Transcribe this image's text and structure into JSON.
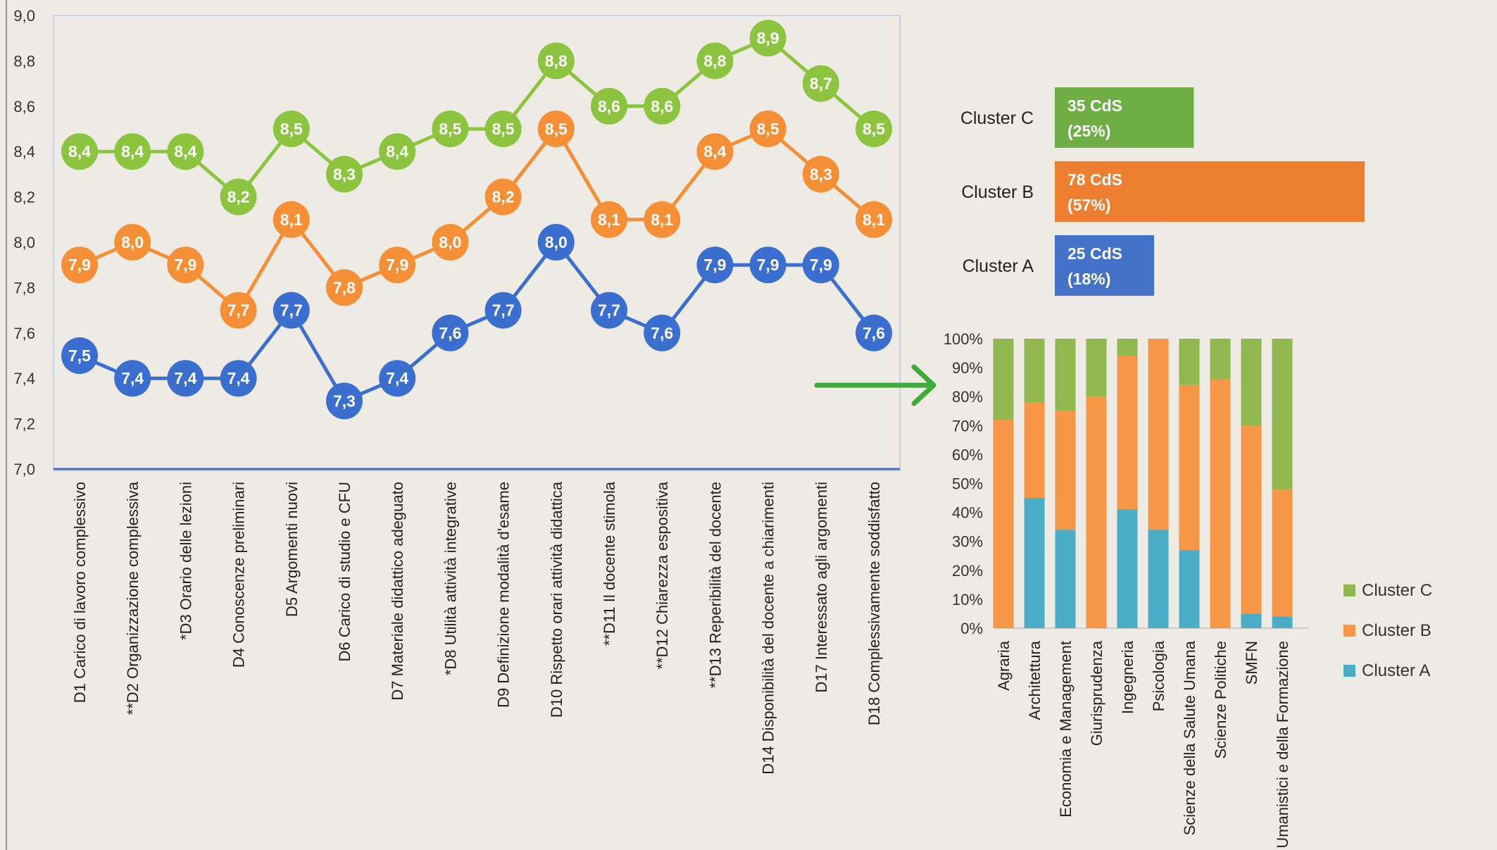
{
  "chart_data": [
    {
      "type": "line",
      "ylim": [
        7.0,
        9.0
      ],
      "y_ticks": [
        "7,0",
        "7,2",
        "7,4",
        "7,6",
        "7,8",
        "8,0",
        "8,2",
        "8,4",
        "8,6",
        "8,8",
        "9,0"
      ],
      "grid": false,
      "categories": [
        "D1 Carico di lavoro complessivo",
        "**D2 Organizzazione complessiva",
        "*D3 Orario delle lezioni",
        "D4 Conoscenze preliminari",
        "D5 Argomenti nuovi",
        "D6 Carico di studio e CFU",
        "D7 Materiale didattico adeguato",
        "*D8 Utilità attività integrative",
        "D9 Definizione modalità d'esame",
        "D10 Rispetto orari attività didattica",
        "**D11 Il docente stimola",
        "**D12 Chiarezza espositiva",
        "**D13 Reperibilità del docente",
        "D14 Disponibilità del docente a chiarimenti",
        "D17 Interessato agli argomenti",
        "D18 Complessivamente soddisfatto"
      ],
      "series": [
        {
          "color": "#8cc43f",
          "values": [
            8.4,
            8.4,
            8.4,
            8.2,
            8.5,
            8.3,
            8.4,
            8.5,
            8.5,
            8.8,
            8.6,
            8.6,
            8.8,
            8.9,
            8.7,
            8.5
          ],
          "labels": [
            "8,4",
            "8,4",
            "8,4",
            "8,2",
            "8,5",
            "8,3",
            "8,4",
            "8,5",
            "8,5",
            "8,8",
            "8,6",
            "8,6",
            "8,8",
            "8,9",
            "8,7",
            "8,5"
          ]
        },
        {
          "color": "#f58f35",
          "values": [
            7.9,
            8.0,
            7.9,
            7.7,
            8.1,
            7.8,
            7.9,
            8.0,
            8.2,
            8.5,
            8.1,
            8.1,
            8.4,
            8.5,
            8.3,
            8.1
          ],
          "labels": [
            "7,9",
            "8,0",
            "7,9",
            "7,7",
            "8,1",
            "7,8",
            "7,9",
            "8,0",
            "8,2",
            "8,5",
            "8,1",
            "8,1",
            "8,4",
            "8,5",
            "8,3",
            "8,1"
          ]
        },
        {
          "color": "#3a6fcf",
          "values": [
            7.5,
            7.4,
            7.4,
            7.4,
            7.7,
            7.3,
            7.4,
            7.6,
            7.7,
            8.0,
            7.7,
            7.6,
            7.9,
            7.9,
            7.9,
            7.6
          ],
          "labels": [
            "7,5",
            "7,4",
            "7,4",
            "7,4",
            "7,7",
            "7,3",
            "7,4",
            "7,6",
            "7,7",
            "8,0",
            "7,7",
            "7,6",
            "7,9",
            "7,9",
            "7,9",
            "7,6"
          ]
        }
      ]
    },
    {
      "type": "bar",
      "orientation": "horizontal",
      "categories": [
        "Cluster C",
        "Cluster B",
        "Cluster A"
      ],
      "values": [
        35,
        78,
        25
      ],
      "percents": [
        25,
        57,
        18
      ],
      "labels_line1": [
        "35 CdS",
        "78 CdS",
        "25 CdS"
      ],
      "labels_line2": [
        "(25%)",
        "(57%)",
        "(18%)"
      ],
      "colors": [
        "#6eae45",
        "#ee7f31",
        "#4472c8"
      ]
    },
    {
      "type": "bar",
      "stacked": true,
      "orientation": "vertical",
      "ylim": [
        0,
        100
      ],
      "y_ticks": [
        "0%",
        "10%",
        "20%",
        "30%",
        "40%",
        "50%",
        "60%",
        "70%",
        "80%",
        "90%",
        "100%"
      ],
      "legend_position": "right",
      "categories": [
        "Agraria",
        "Architettura",
        "Economia e Management",
        "Giurisprudenza",
        "Ingegneria",
        "Psicologia",
        "Scienze della Salute Umana",
        "Scienze Politiche",
        "SMFN",
        "Studi Umanistici e della Formazione"
      ],
      "series": [
        {
          "name": "Cluster A",
          "color": "#4aadc6",
          "values": [
            0,
            45,
            34,
            0,
            41,
            34,
            27,
            0,
            5,
            4
          ]
        },
        {
          "name": "Cluster B",
          "color": "#f79646",
          "values": [
            72,
            33,
            41,
            80,
            53,
            66,
            57,
            86,
            65,
            44
          ]
        },
        {
          "name": "Cluster C",
          "color": "#91b84f",
          "values": [
            28,
            22,
            25,
            20,
            6,
            0,
            16,
            14,
            30,
            52
          ]
        }
      ]
    }
  ]
}
